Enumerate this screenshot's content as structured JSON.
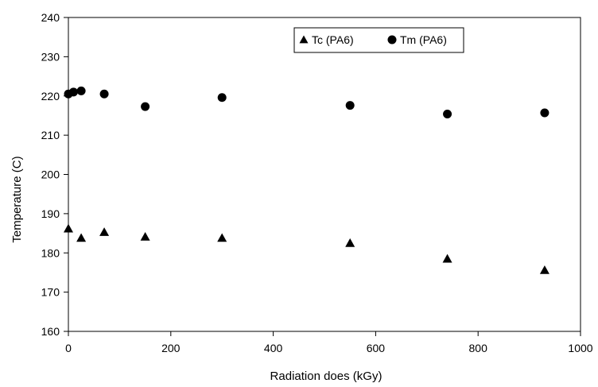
{
  "chart_data": {
    "type": "scatter",
    "xlabel": "Radiation does (kGy)",
    "ylabel": "Temperature (C)",
    "xlim": [
      0,
      1000
    ],
    "ylim": [
      160,
      240
    ],
    "xticks": [
      0,
      200,
      400,
      600,
      800,
      1000
    ],
    "yticks": [
      160,
      170,
      180,
      190,
      200,
      210,
      220,
      230,
      240
    ],
    "grid": false,
    "legend_position": "top-right",
    "series": [
      {
        "name": "Tc (PA6)",
        "marker": "triangle",
        "color": "#000000",
        "x": [
          0,
          25,
          70,
          150,
          300,
          550,
          740,
          930
        ],
        "y": [
          186.2,
          183.8,
          185.3,
          184.1,
          183.8,
          182.5,
          178.5,
          175.6
        ]
      },
      {
        "name": "Tm (PA6)",
        "marker": "circle",
        "color": "#000000",
        "x": [
          0,
          10,
          25,
          70,
          150,
          300,
          550,
          740,
          930
        ],
        "y": [
          220.5,
          221.0,
          221.3,
          220.5,
          217.3,
          219.6,
          217.6,
          215.4,
          215.7
        ]
      }
    ]
  }
}
